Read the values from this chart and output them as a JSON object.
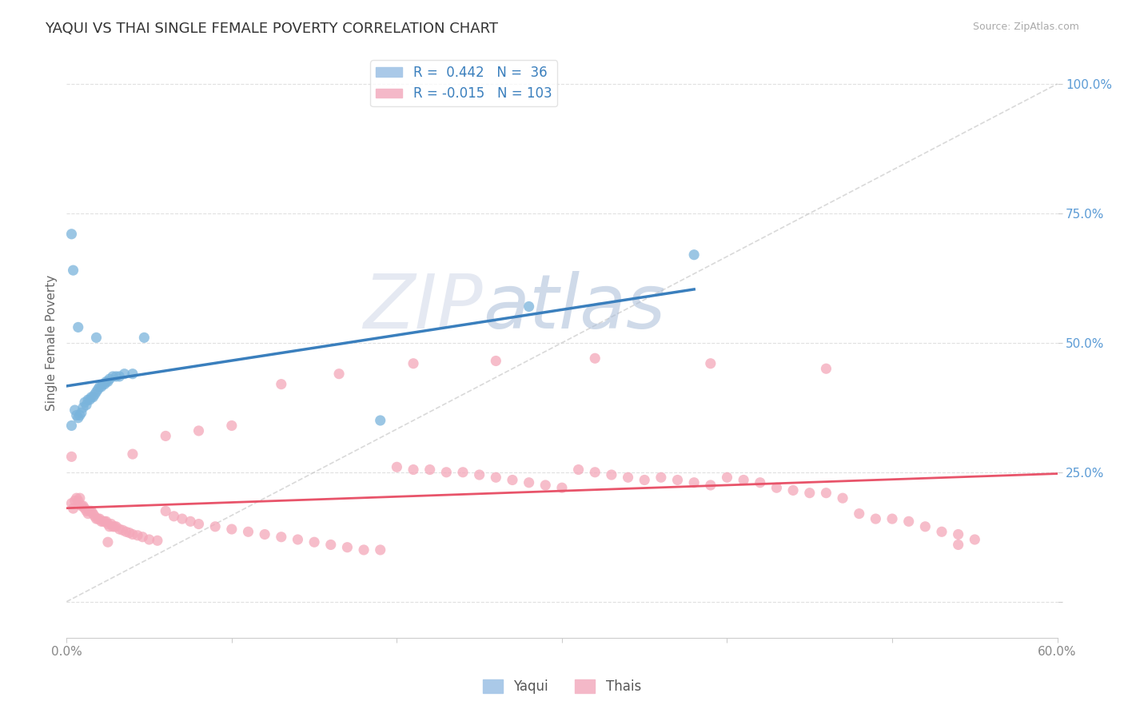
{
  "title": "YAQUI VS THAI SINGLE FEMALE POVERTY CORRELATION CHART",
  "source": "Source: ZipAtlas.com",
  "ylabel": "Single Female Poverty",
  "xlim": [
    0.0,
    0.6
  ],
  "ylim": [
    -0.07,
    1.07
  ],
  "yaqui_color": "#7ab4dc",
  "thai_color": "#f4a7b9",
  "yaqui_R": 0.442,
  "yaqui_N": 36,
  "thai_R": -0.015,
  "thai_N": 103,
  "background_color": "#ffffff",
  "grid_color": "#dddddd",
  "watermark_zip": "ZIP",
  "watermark_atlas": "atlas",
  "legend_label_yaqui": "Yaqui",
  "legend_label_thai": "Thais",
  "yaqui_line_color": "#3a7fbd",
  "thai_line_color": "#e8546a",
  "ref_line_color": "#c0c0c0",
  "yaqui_x": [
    0.003,
    0.005,
    0.006,
    0.007,
    0.008,
    0.009,
    0.01,
    0.011,
    0.012,
    0.013,
    0.014,
    0.015,
    0.016,
    0.017,
    0.018,
    0.019,
    0.02,
    0.021,
    0.022,
    0.023,
    0.024,
    0.025,
    0.026,
    0.028,
    0.03,
    0.032,
    0.035,
    0.04,
    0.003,
    0.004,
    0.28,
    0.007,
    0.018,
    0.38,
    0.19,
    0.047
  ],
  "yaqui_y": [
    0.34,
    0.37,
    0.36,
    0.355,
    0.36,
    0.365,
    0.375,
    0.385,
    0.38,
    0.39,
    0.39,
    0.395,
    0.395,
    0.4,
    0.405,
    0.41,
    0.415,
    0.415,
    0.42,
    0.42,
    0.425,
    0.425,
    0.43,
    0.435,
    0.435,
    0.435,
    0.44,
    0.44,
    0.71,
    0.64,
    0.57,
    0.53,
    0.51,
    0.67,
    0.35,
    0.51
  ],
  "thai_x": [
    0.003,
    0.004,
    0.005,
    0.006,
    0.007,
    0.008,
    0.009,
    0.01,
    0.011,
    0.012,
    0.013,
    0.014,
    0.015,
    0.016,
    0.017,
    0.018,
    0.019,
    0.02,
    0.021,
    0.022,
    0.023,
    0.024,
    0.025,
    0.026,
    0.027,
    0.028,
    0.029,
    0.03,
    0.032,
    0.034,
    0.036,
    0.038,
    0.04,
    0.043,
    0.046,
    0.05,
    0.055,
    0.06,
    0.065,
    0.07,
    0.075,
    0.08,
    0.09,
    0.1,
    0.11,
    0.12,
    0.13,
    0.14,
    0.15,
    0.16,
    0.17,
    0.18,
    0.19,
    0.2,
    0.21,
    0.22,
    0.23,
    0.24,
    0.25,
    0.26,
    0.27,
    0.28,
    0.29,
    0.3,
    0.31,
    0.32,
    0.33,
    0.34,
    0.35,
    0.36,
    0.37,
    0.38,
    0.39,
    0.4,
    0.41,
    0.42,
    0.43,
    0.44,
    0.45,
    0.46,
    0.47,
    0.48,
    0.49,
    0.5,
    0.51,
    0.52,
    0.53,
    0.54,
    0.55,
    0.025,
    0.04,
    0.06,
    0.08,
    0.1,
    0.13,
    0.165,
    0.21,
    0.26,
    0.32,
    0.39,
    0.46,
    0.54,
    0.003
  ],
  "thai_y": [
    0.19,
    0.18,
    0.195,
    0.2,
    0.195,
    0.2,
    0.185,
    0.185,
    0.18,
    0.175,
    0.17,
    0.175,
    0.175,
    0.17,
    0.165,
    0.16,
    0.16,
    0.16,
    0.155,
    0.155,
    0.155,
    0.155,
    0.15,
    0.145,
    0.15,
    0.145,
    0.145,
    0.145,
    0.14,
    0.138,
    0.135,
    0.133,
    0.13,
    0.128,
    0.125,
    0.12,
    0.118,
    0.175,
    0.165,
    0.16,
    0.155,
    0.15,
    0.145,
    0.14,
    0.135,
    0.13,
    0.125,
    0.12,
    0.115,
    0.11,
    0.105,
    0.1,
    0.1,
    0.26,
    0.255,
    0.255,
    0.25,
    0.25,
    0.245,
    0.24,
    0.235,
    0.23,
    0.225,
    0.22,
    0.255,
    0.25,
    0.245,
    0.24,
    0.235,
    0.24,
    0.235,
    0.23,
    0.225,
    0.24,
    0.235,
    0.23,
    0.22,
    0.215,
    0.21,
    0.21,
    0.2,
    0.17,
    0.16,
    0.16,
    0.155,
    0.145,
    0.135,
    0.13,
    0.12,
    0.115,
    0.285,
    0.32,
    0.33,
    0.34,
    0.42,
    0.44,
    0.46,
    0.465,
    0.47,
    0.46,
    0.45,
    0.11,
    0.28
  ]
}
